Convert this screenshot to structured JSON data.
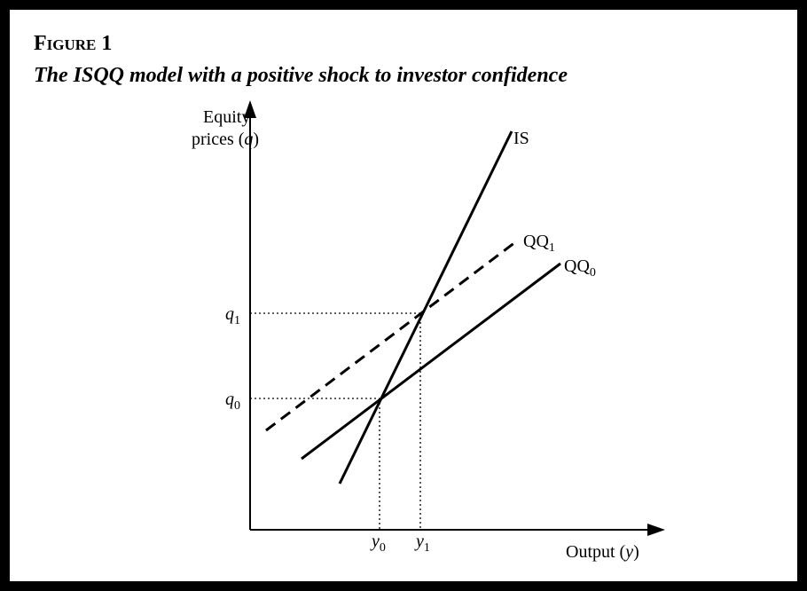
{
  "figure": {
    "label": "Figure 1",
    "title": "The ISQQ model with a positive shock to investor confidence"
  },
  "axes": {
    "y_label": {
      "line1": "Equity",
      "line2_before": "prices (",
      "line2_var": "q",
      "line2_after": ")"
    },
    "x_label": {
      "before": "Output (",
      "var": "y",
      "after": ")"
    }
  },
  "curves": {
    "is": "IS",
    "qq1": {
      "base": "QQ",
      "sub": "1"
    },
    "qq0": {
      "base": "QQ",
      "sub": "0"
    }
  },
  "ticks": {
    "q1": {
      "base": "q",
      "sub": "1"
    },
    "q0": {
      "base": "q",
      "sub": "0"
    },
    "y0": {
      "base": "y",
      "sub": "0"
    },
    "y1": {
      "base": "y",
      "sub": "1"
    }
  }
}
